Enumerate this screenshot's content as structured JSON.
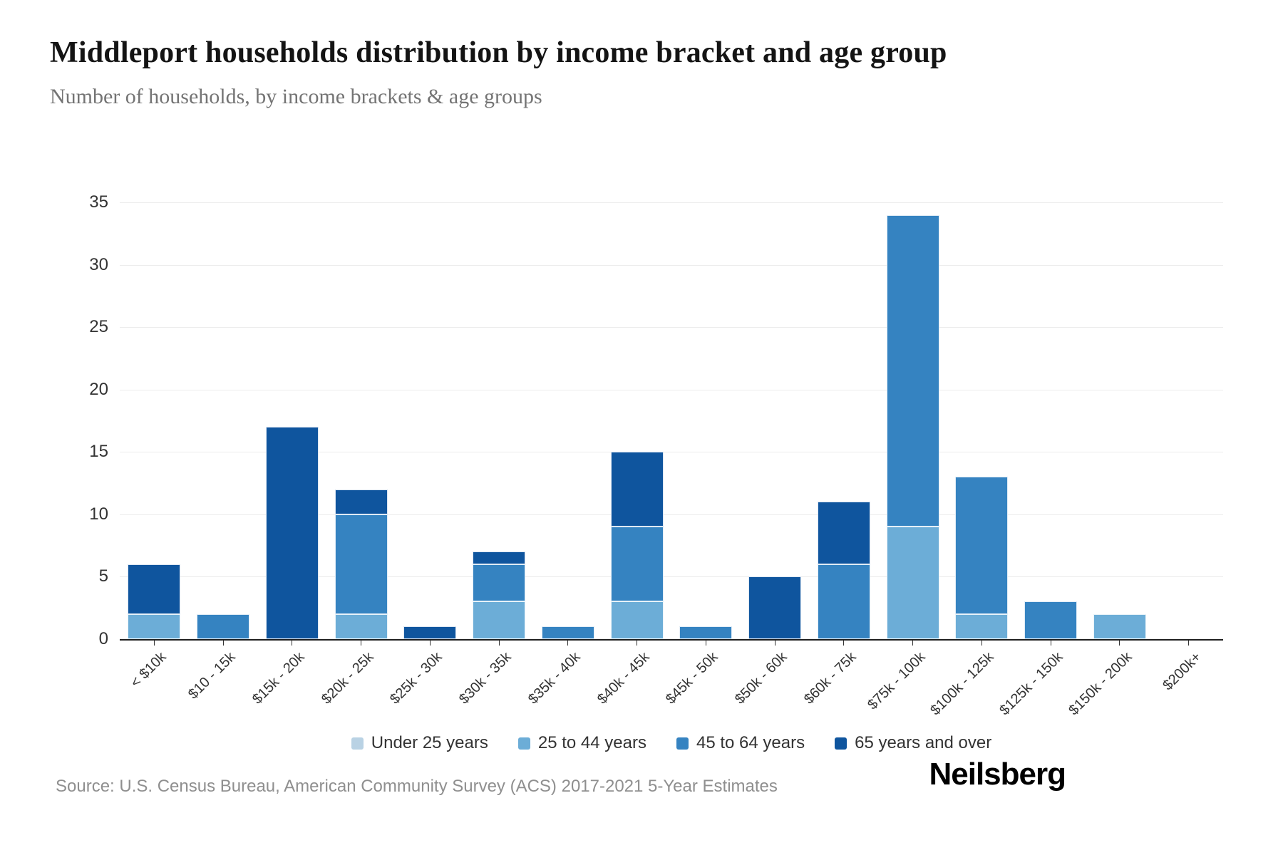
{
  "header": {
    "title": "Middleport households distribution by income bracket and age group",
    "subtitle": "Number of households, by income brackets & age groups"
  },
  "chart_data": {
    "type": "bar",
    "stacked": true,
    "title": "Middleport households distribution by income bracket and age group",
    "subtitle": "Number of households, by income brackets & age groups",
    "xlabel": "",
    "ylabel": "",
    "ylim": [
      0,
      35
    ],
    "yticks": [
      0,
      5,
      10,
      15,
      20,
      25,
      30,
      35
    ],
    "grid": "horizontal",
    "legend_position": "bottom-center",
    "categories": [
      "< $10k",
      "$10 - 15k",
      "$15k - 20k",
      "$20k - 25k",
      "$25k - 30k",
      "$30k - 35k",
      "$35k - 40k",
      "$40k - 45k",
      "$45k - 50k",
      "$50k - 60k",
      "$60k - 75k",
      "$75k - 100k",
      "$100k - 125k",
      "$125k - 150k",
      "$150k - 200k",
      "$200k+"
    ],
    "series": [
      {
        "name": "Under 25 years",
        "color": "#b9d2e4",
        "values": [
          0,
          0,
          0,
          0,
          0,
          0,
          0,
          0,
          0,
          0,
          0,
          0,
          0,
          0,
          0,
          0
        ]
      },
      {
        "name": "25 to 44 years",
        "color": "#6cadd7",
        "values": [
          2,
          0,
          0,
          2,
          0,
          3,
          0,
          3,
          0,
          0,
          0,
          9,
          2,
          0,
          2,
          0
        ]
      },
      {
        "name": "45 to 64 years",
        "color": "#3583c1",
        "values": [
          0,
          2,
          0,
          8,
          0,
          3,
          1,
          6,
          1,
          0,
          6,
          25,
          11,
          3,
          0,
          0
        ]
      },
      {
        "name": "65 years and over",
        "color": "#0f559e",
        "values": [
          4,
          0,
          17,
          2,
          1,
          1,
          0,
          6,
          0,
          5,
          5,
          0,
          0,
          0,
          0,
          0
        ]
      }
    ],
    "totals": [
      6,
      2,
      17,
      12,
      1,
      7,
      1,
      15,
      1,
      5,
      11,
      34,
      13,
      3,
      2,
      0
    ]
  },
  "footer": {
    "source": "Source: U.S. Census Bureau, American Community Survey (ACS) 2017-2021 5-Year Estimates",
    "brand": "Neilsberg"
  }
}
